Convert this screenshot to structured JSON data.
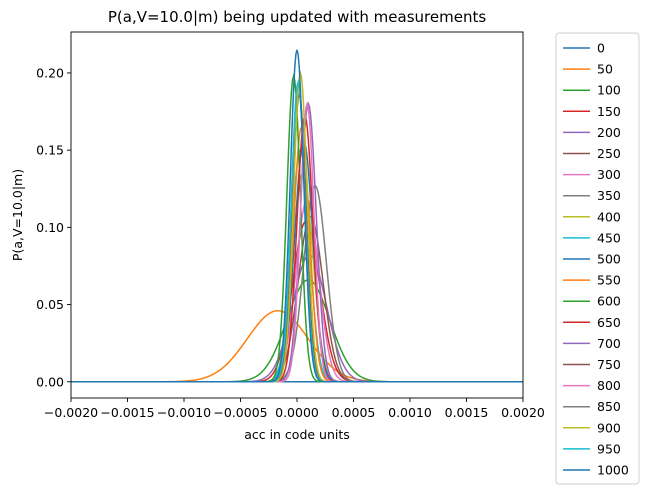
{
  "chart_data": {
    "type": "line",
    "title": "P(a,V=10.0|m) being updated with measurements",
    "xlabel": "acc in code units",
    "ylabel": "P(a,V=10.0|m)",
    "xlim": [
      -0.002,
      0.002
    ],
    "ylim": [
      -0.0105,
      0.2265
    ],
    "xticks": [
      -0.002,
      -0.0015,
      -0.001,
      -0.0005,
      0.0,
      0.0005,
      0.001,
      0.0015,
      0.002
    ],
    "xtick_labels": [
      "−0.0020",
      "−0.0015",
      "−0.0010",
      "−0.0005",
      "0.0000",
      "0.0005",
      "0.0010",
      "0.0015",
      "0.0020"
    ],
    "yticks": [
      0.0,
      0.05,
      0.1,
      0.15,
      0.2
    ],
    "ytick_labels": [
      "0.00",
      "0.05",
      "0.10",
      "0.15",
      "0.20"
    ],
    "grid": false,
    "legend_position": "outside-right",
    "series": [
      {
        "name": "0",
        "color": "#1f77b4",
        "mu": 0.0,
        "sigma": 0.0,
        "peak": 0.0
      },
      {
        "name": "50",
        "color": "#ff7f0e",
        "mu": -0.00017,
        "sigma": 0.00027,
        "peak": 0.046
      },
      {
        "name": "100",
        "color": "#2ca02c",
        "mu": 0.0001,
        "sigma": 0.00019,
        "peak": 0.066
      },
      {
        "name": "150",
        "color": "#d62728",
        "mu": 8e-05,
        "sigma": 0.00012,
        "peak": 0.104
      },
      {
        "name": "200",
        "color": "#9467bd",
        "mu": 0.00011,
        "sigma": 0.00015,
        "peak": 0.082
      },
      {
        "name": "250",
        "color": "#8c564b",
        "mu": 0.00012,
        "sigma": 0.00011,
        "peak": 0.107
      },
      {
        "name": "300",
        "color": "#e377c2",
        "mu": 9e-05,
        "sigma": 0.0001,
        "peak": 0.118
      },
      {
        "name": "350",
        "color": "#7f7f7f",
        "mu": 0.00016,
        "sigma": 0.0001,
        "peak": 0.127
      },
      {
        "name": "400",
        "color": "#bcbd22",
        "mu": 5e-05,
        "sigma": 9e-05,
        "peak": 0.135
      },
      {
        "name": "450",
        "color": "#17becf",
        "mu": 3e-05,
        "sigma": 8e-05,
        "peak": 0.15
      },
      {
        "name": "500",
        "color": "#1f77b4",
        "mu": 6e-05,
        "sigma": 8e-05,
        "peak": 0.156
      },
      {
        "name": "550",
        "color": "#ff7f0e",
        "mu": 4e-05,
        "sigma": 7e-05,
        "peak": 0.165
      },
      {
        "name": "600",
        "color": "#2ca02c",
        "mu": -3e-05,
        "sigma": 6e-05,
        "peak": 0.198
      },
      {
        "name": "650",
        "color": "#d62728",
        "mu": 7e-05,
        "sigma": 7e-05,
        "peak": 0.172
      },
      {
        "name": "700",
        "color": "#9467bd",
        "mu": 0.0001,
        "sigma": 7e-05,
        "peak": 0.18
      },
      {
        "name": "750",
        "color": "#8c564b",
        "mu": 2e-05,
        "sigma": 6e-05,
        "peak": 0.186
      },
      {
        "name": "800",
        "color": "#e377c2",
        "mu": 9e-05,
        "sigma": 6e-05,
        "peak": 0.18
      },
      {
        "name": "850",
        "color": "#7f7f7f",
        "mu": 1e-05,
        "sigma": 6e-05,
        "peak": 0.193
      },
      {
        "name": "900",
        "color": "#bcbd22",
        "mu": 3e-05,
        "sigma": 6e-05,
        "peak": 0.2
      },
      {
        "name": "950",
        "color": "#17becf",
        "mu": 1e-05,
        "sigma": 6e-05,
        "peak": 0.194
      },
      {
        "name": "1000",
        "color": "#1f77b4",
        "mu": 0.0,
        "sigma": 6e-05,
        "peak": 0.215
      }
    ]
  }
}
